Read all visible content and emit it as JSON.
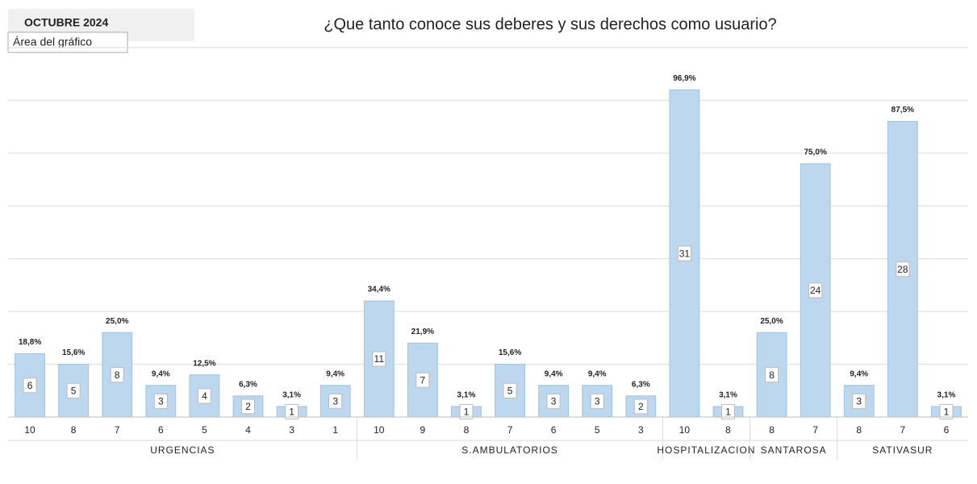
{
  "chart_data": {
    "type": "bar",
    "period": "OCTUBRE 2024",
    "tooltip": "Área del gráfico",
    "title": "¿Que tanto conoce sus deberes y sus derechos como usuario?",
    "color": "#bdd7ee",
    "ylim": [
      0,
      35
    ],
    "yticks": [
      0,
      5,
      10,
      15,
      20,
      25,
      30,
      35
    ],
    "grid": true,
    "groups": [
      {
        "name": "URGENCIAS",
        "categories": [
          "10",
          "8",
          "7",
          "6",
          "5",
          "4",
          "3",
          "1"
        ],
        "values": [
          6,
          5,
          8,
          3,
          4,
          2,
          1,
          3
        ],
        "percents": [
          18.8,
          15.6,
          25.0,
          9.4,
          12.5,
          6.3,
          3.1,
          9.4
        ],
        "percent_labels": [
          "18,8%",
          "15,6%",
          "25,0%",
          "9,4%",
          "12,5%",
          "6,3%",
          "3,1%",
          "9,4%"
        ]
      },
      {
        "name": "S.AMBULATORIOS",
        "categories": [
          "10",
          "9",
          "8",
          "7",
          "6",
          "5",
          "3"
        ],
        "values": [
          11,
          7,
          1,
          5,
          3,
          3,
          2
        ],
        "percents": [
          34.4,
          21.9,
          3.1,
          15.6,
          9.4,
          9.4,
          6.3
        ],
        "percent_labels": [
          "34,4%",
          "21,9%",
          "3,1%",
          "15,6%",
          "9,4%",
          "9,4%",
          "6,3%"
        ]
      },
      {
        "name": "HOSPITALIZACION",
        "categories": [
          "10",
          "8"
        ],
        "values": [
          31,
          1
        ],
        "percents": [
          96.9,
          3.1
        ],
        "percent_labels": [
          "96,9%",
          "3,1%"
        ]
      },
      {
        "name": "SANTAROSA",
        "categories": [
          "8",
          "7"
        ],
        "values": [
          8,
          24
        ],
        "percents": [
          25.0,
          75.0
        ],
        "percent_labels": [
          "25,0%",
          "75,0%"
        ]
      },
      {
        "name": "SATIVASUR",
        "categories": [
          "8",
          "7",
          "6"
        ],
        "values": [
          3,
          28,
          1
        ],
        "percents": [
          9.4,
          87.5,
          3.1
        ],
        "percent_labels": [
          "9,4%",
          "87,5%",
          "3,1%"
        ]
      }
    ]
  }
}
